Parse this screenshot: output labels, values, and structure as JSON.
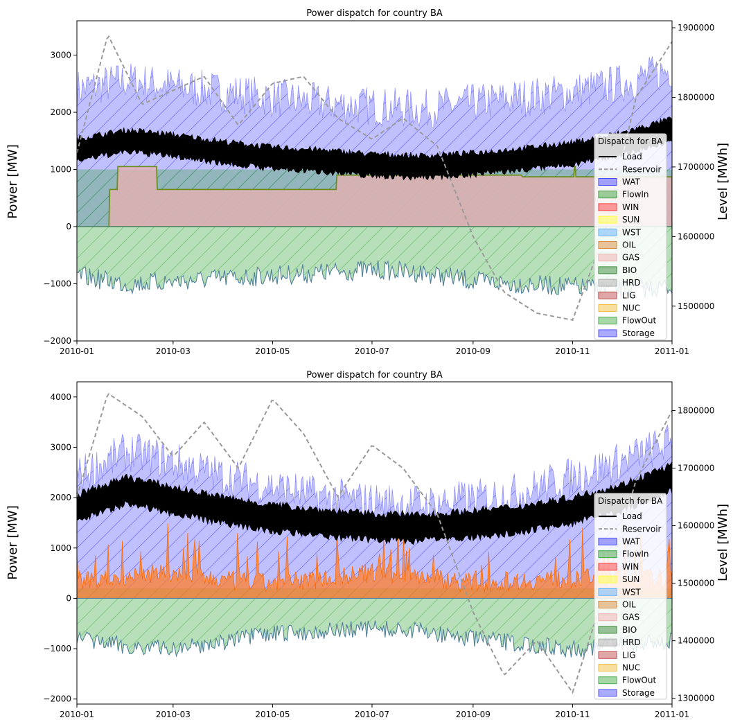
{
  "chart_data": [
    {
      "type": "area",
      "title": "Power dispatch for country BA",
      "xlabel": "",
      "ylabel": "Power [MW]",
      "y2label": "Level [MWh]",
      "x_ticks": [
        "2010-01",
        "2010-03",
        "2010-05",
        "2010-07",
        "2010-09",
        "2010-11",
        "2011-01"
      ],
      "xlim": [
        "2010-01-01",
        "2011-01-01"
      ],
      "ylim": [
        -2000,
        3600
      ],
      "y_ticks": [
        -2000,
        -1000,
        0,
        1000,
        2000,
        3000
      ],
      "y2lim": [
        1450000,
        1910000
      ],
      "y2_ticks": [
        1500000,
        1600000,
        1700000,
        1800000,
        1900000
      ],
      "legend": {
        "title": "Dispatch for BA",
        "placement": "right",
        "entries": [
          "Load",
          "Reservoir",
          "WAT",
          "FlowIn",
          "WIN",
          "SUN",
          "WST",
          "OIL",
          "GAS",
          "BIO",
          "HRD",
          "LIG",
          "NUC",
          "FlowOut",
          "Storage"
        ]
      },
      "colors": {
        "Load": "#000000",
        "Reservoir": "#999999",
        "WAT": "#4b4bff",
        "FlowIn": "#3fa33f",
        "WIN": "#ff4040",
        "SUN": "#ffff40",
        "WST": "#66b3ff",
        "OIL": "#d98c3f",
        "GAS": "#f0b0b0",
        "BIO": "#3a8a3a",
        "HRD": "#b0b0b0",
        "LIG": "#c05050",
        "NUC": "#f0c040",
        "FlowOut": "#4caf50",
        "Storage": "#5555ff"
      },
      "series": [
        {
          "name": "Load",
          "axis": "left",
          "x": [
            "2010-01-01",
            "2010-02-01",
            "2010-03-01",
            "2010-04-01",
            "2010-05-01",
            "2010-06-01",
            "2010-07-01",
            "2010-08-01",
            "2010-09-01",
            "2010-10-01",
            "2010-11-01",
            "2010-12-01",
            "2011-01-01"
          ],
          "values": [
            1350,
            1500,
            1420,
            1300,
            1200,
            1150,
            1080,
            1050,
            1100,
            1180,
            1280,
            1450,
            1700
          ],
          "band": 220
        },
        {
          "name": "GAS",
          "axis": "left",
          "x": [
            "2010-01-01",
            "2010-01-20",
            "2010-01-21",
            "2010-01-25",
            "2010-01-26",
            "2010-02-18",
            "2010-02-19",
            "2010-06-08",
            "2010-06-09",
            "2010-09-30",
            "2010-10-01",
            "2010-10-28",
            "2010-11-02",
            "2010-11-03",
            "2011-01-01"
          ],
          "values": [
            0,
            0,
            650,
            650,
            1050,
            1050,
            650,
            650,
            900,
            900,
            870,
            870,
            1050,
            870,
            870
          ]
        },
        {
          "name": "WAT",
          "axis": "left",
          "x": [
            "2010-01-01",
            "2010-02-01",
            "2010-03-01",
            "2010-04-01",
            "2010-05-01",
            "2010-06-01",
            "2010-07-01",
            "2010-08-01",
            "2010-09-01",
            "2010-10-01",
            "2010-11-01",
            "2010-12-01",
            "2011-01-01"
          ],
          "values": [
            2300,
            2450,
            2350,
            2250,
            2150,
            2050,
            2000,
            1950,
            2050,
            2150,
            2250,
            2400,
            2650
          ],
          "band": 700
        },
        {
          "name": "FlowOut",
          "axis": "left",
          "x": [
            "2010-01-01",
            "2010-02-01",
            "2010-03-01",
            "2010-04-01",
            "2010-05-01",
            "2010-06-01",
            "2010-07-01",
            "2010-08-01",
            "2010-09-01",
            "2010-10-01",
            "2010-11-01",
            "2010-12-01",
            "2011-01-01"
          ],
          "values": [
            -750,
            -900,
            -850,
            -800,
            -750,
            -700,
            -650,
            -700,
            -850,
            -900,
            -950,
            -1000,
            -950
          ],
          "band": 350
        },
        {
          "name": "Reservoir",
          "axis": "right",
          "x": [
            "2010-01-01",
            "2010-01-20",
            "2010-02-10",
            "2010-03-01",
            "2010-03-20",
            "2010-04-10",
            "2010-05-01",
            "2010-05-20",
            "2010-06-10",
            "2010-07-01",
            "2010-07-20",
            "2010-08-10",
            "2010-09-01",
            "2010-09-20",
            "2010-10-10",
            "2010-11-01",
            "2010-11-20",
            "2010-12-10",
            "2011-01-01"
          ],
          "values": [
            1720000,
            1890000,
            1790000,
            1810000,
            1830000,
            1760000,
            1820000,
            1830000,
            1770000,
            1740000,
            1770000,
            1730000,
            1600000,
            1520000,
            1490000,
            1480000,
            1600000,
            1800000,
            1880000
          ]
        }
      ]
    },
    {
      "type": "area",
      "title": "Power dispatch for country BA",
      "xlabel": "",
      "ylabel": "Power [MW]",
      "y2label": "Level [MWh]",
      "x_ticks": [
        "2010-01",
        "2010-03",
        "2010-05",
        "2010-07",
        "2010-09",
        "2010-11",
        "2011-01"
      ],
      "xlim": [
        "2010-01-01",
        "2011-01-01"
      ],
      "ylim": [
        -2100,
        4300
      ],
      "y_ticks": [
        -2000,
        -1000,
        0,
        1000,
        2000,
        3000,
        4000
      ],
      "y2lim": [
        1290000,
        1850000
      ],
      "y2_ticks": [
        1300000,
        1400000,
        1500000,
        1600000,
        1700000,
        1800000
      ],
      "legend": {
        "title": "Dispatch for BA",
        "placement": "right",
        "entries": [
          "Load",
          "Reservoir",
          "WAT",
          "FlowIn",
          "WIN",
          "SUN",
          "WST",
          "OIL",
          "GAS",
          "BIO",
          "HRD",
          "LIG",
          "NUC",
          "FlowOut",
          "Storage"
        ]
      },
      "colors": {
        "Load": "#000000",
        "Reservoir": "#999999",
        "WAT": "#4b4bff",
        "FlowIn": "#3fa33f",
        "WIN": "#ff4040",
        "SUN": "#ffff40",
        "WST": "#66b3ff",
        "OIL": "#d98c3f",
        "GAS": "#f0b0b0",
        "BIO": "#3a8a3a",
        "HRD": "#b0b0b0",
        "LIG": "#c05050",
        "NUC": "#f0c040",
        "FlowOut": "#4caf50",
        "Storage": "#5555ff"
      },
      "series": [
        {
          "name": "Load",
          "axis": "left",
          "x": [
            "2010-01-01",
            "2010-02-01",
            "2010-03-01",
            "2010-04-01",
            "2010-05-01",
            "2010-06-01",
            "2010-07-01",
            "2010-08-01",
            "2010-09-01",
            "2010-10-01",
            "2010-11-01",
            "2010-12-01",
            "2011-01-01"
          ],
          "values": [
            1800,
            2150,
            1950,
            1750,
            1600,
            1500,
            1420,
            1400,
            1480,
            1580,
            1750,
            2000,
            2400
          ],
          "band": 300
        },
        {
          "name": "OIL",
          "axis": "left",
          "x": [
            "2010-01-01",
            "2010-02-01",
            "2010-03-01",
            "2010-04-01",
            "2010-05-01",
            "2010-06-01",
            "2010-07-01",
            "2010-08-01",
            "2010-09-01",
            "2010-10-01",
            "2010-11-01",
            "2010-12-01",
            "2011-01-01"
          ],
          "values": [
            300,
            450,
            500,
            350,
            300,
            400,
            500,
            450,
            300,
            350,
            400,
            450,
            350
          ],
          "band": 400
        },
        {
          "name": "WAT",
          "axis": "left",
          "x": [
            "2010-01-01",
            "2010-02-01",
            "2010-03-01",
            "2010-04-01",
            "2010-05-01",
            "2010-06-01",
            "2010-07-01",
            "2010-08-01",
            "2010-09-01",
            "2010-10-01",
            "2010-11-01",
            "2010-12-01",
            "2011-01-01"
          ],
          "values": [
            2300,
            2800,
            2600,
            2300,
            2100,
            1900,
            1800,
            1750,
            1850,
            2000,
            2300,
            2600,
            3000
          ],
          "band": 800
        },
        {
          "name": "FlowOut",
          "axis": "left",
          "x": [
            "2010-01-01",
            "2010-02-01",
            "2010-03-01",
            "2010-04-01",
            "2010-05-01",
            "2010-06-01",
            "2010-07-01",
            "2010-08-01",
            "2010-09-01",
            "2010-10-01",
            "2010-11-01",
            "2010-12-01",
            "2011-01-01"
          ],
          "values": [
            -700,
            -850,
            -900,
            -750,
            -600,
            -550,
            -500,
            -550,
            -700,
            -800,
            -900,
            -800,
            -750
          ],
          "band": 350
        },
        {
          "name": "Reservoir",
          "axis": "right",
          "x": [
            "2010-01-01",
            "2010-01-20",
            "2010-02-10",
            "2010-03-01",
            "2010-03-20",
            "2010-04-10",
            "2010-05-01",
            "2010-05-20",
            "2010-06-10",
            "2010-07-01",
            "2010-07-20",
            "2010-08-10",
            "2010-09-01",
            "2010-09-20",
            "2010-10-10",
            "2010-11-01",
            "2010-11-20",
            "2010-12-10",
            "2011-01-01"
          ],
          "values": [
            1650000,
            1830000,
            1790000,
            1720000,
            1780000,
            1700000,
            1820000,
            1760000,
            1650000,
            1740000,
            1700000,
            1620000,
            1450000,
            1340000,
            1400000,
            1310000,
            1480000,
            1680000,
            1800000
          ]
        }
      ]
    }
  ]
}
